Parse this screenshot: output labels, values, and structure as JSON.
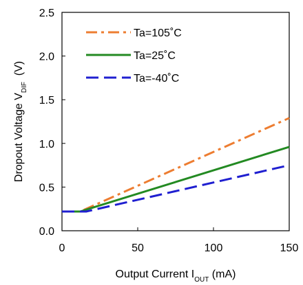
{
  "chart_data": {
    "type": "line",
    "xlabel": {
      "main": "Output Current I",
      "sub": "OUT",
      "unit": " (mA)"
    },
    "ylabel": {
      "main": "Dropout Voltage V",
      "sub": "DIF",
      "unit": "  (V)"
    },
    "xlim": [
      0,
      150
    ],
    "ylim": [
      0,
      2.5
    ],
    "x_ticks": [
      "0",
      "50",
      "100",
      "150"
    ],
    "y_ticks": [
      "0.0",
      "0.5",
      "1.0",
      "1.5",
      "2.0",
      "2.5"
    ],
    "grid": false,
    "legend_position": "top-left",
    "series": [
      {
        "name": "Ta=105˚C",
        "color": "#ED7D31",
        "dash": "dashdot",
        "x": [
          0,
          12,
          150
        ],
        "y": [
          0.22,
          0.22,
          1.29
        ]
      },
      {
        "name": "Ta=25˚C",
        "color": "#238A22",
        "dash": "solid",
        "x": [
          0,
          12,
          150
        ],
        "y": [
          0.22,
          0.22,
          0.96
        ]
      },
      {
        "name": "Ta=-40˚C",
        "color": "#1F1FD0",
        "dash": "dashed",
        "x": [
          0,
          16,
          150
        ],
        "y": [
          0.22,
          0.22,
          0.75
        ]
      }
    ]
  }
}
